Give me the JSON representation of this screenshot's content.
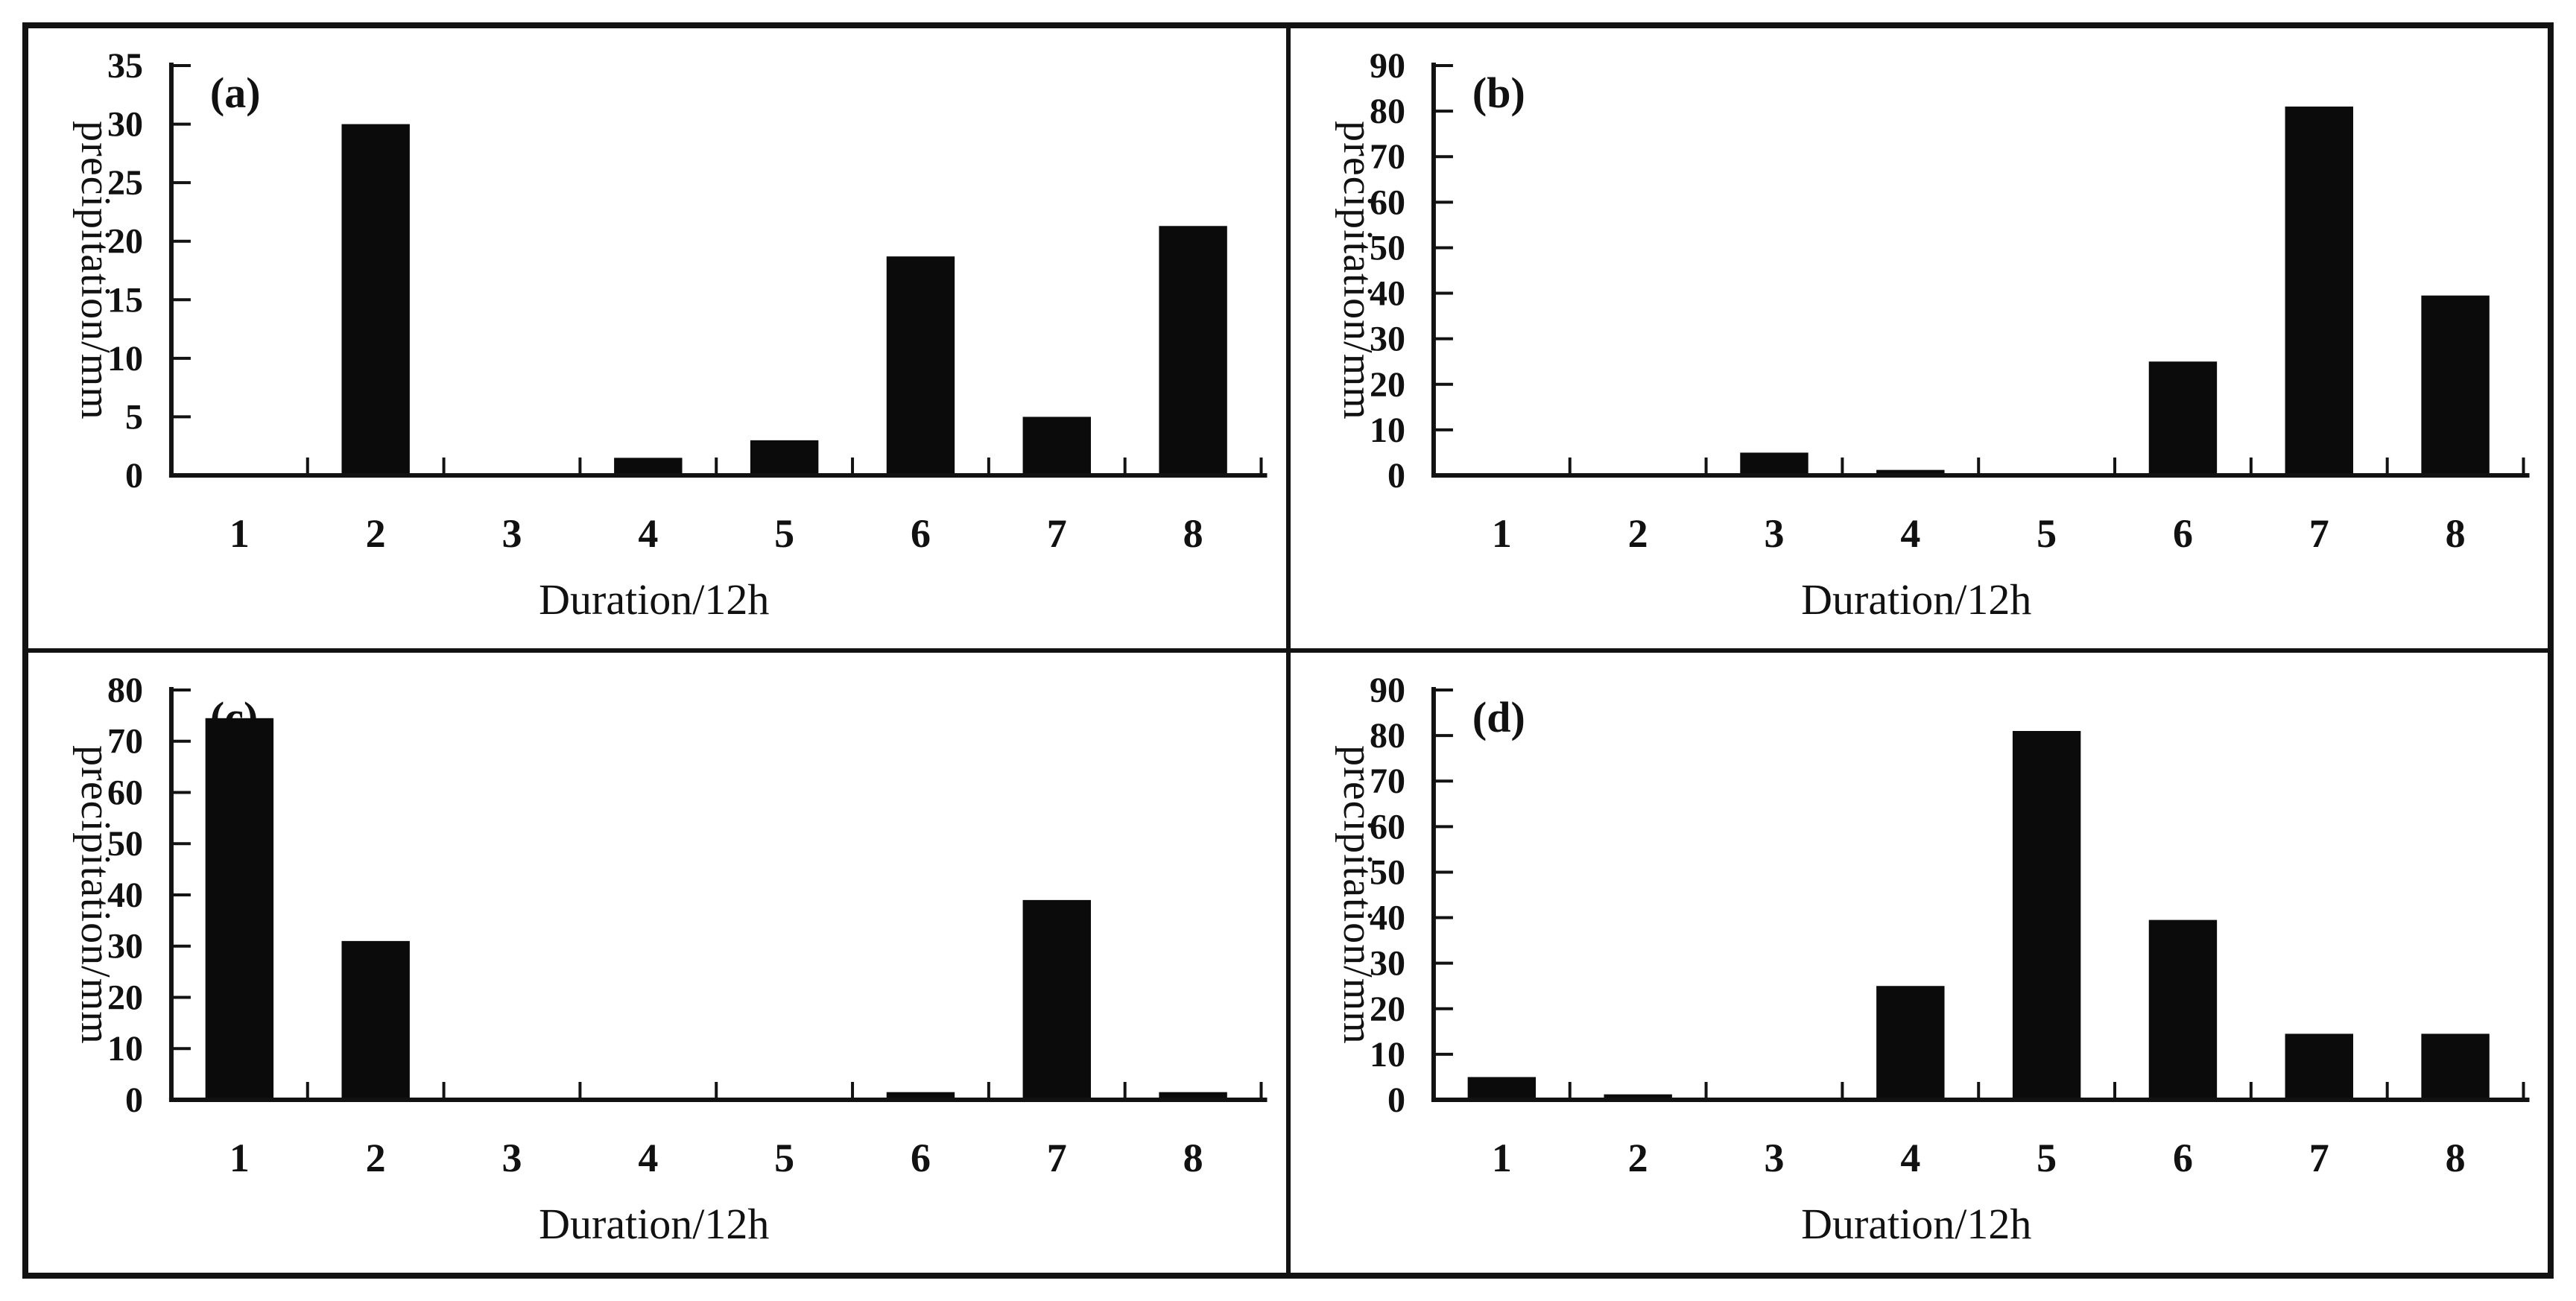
{
  "figure": {
    "background": "#ffffff",
    "border_color": "#121212",
    "bar_color": "#0b0b0b",
    "text_color": "#111111"
  },
  "chart_data": [
    {
      "type": "bar",
      "panel_label": "(a)",
      "categories": [
        "1",
        "2",
        "3",
        "4",
        "5",
        "6",
        "7",
        "8"
      ],
      "values": [
        0,
        30,
        0,
        1.5,
        3,
        18.7,
        5,
        21.3
      ],
      "xlabel": "Duration/12h",
      "ylabel": "precipitation/mm",
      "ylim": [
        0,
        35
      ],
      "yticks": [
        0,
        5,
        10,
        15,
        20,
        25,
        30,
        35
      ],
      "grid": false,
      "legend": false
    },
    {
      "type": "bar",
      "panel_label": "(b)",
      "categories": [
        "1",
        "2",
        "3",
        "4",
        "5",
        "6",
        "7",
        "8"
      ],
      "values": [
        0,
        0,
        5,
        1.2,
        0,
        25,
        81,
        39.5
      ],
      "xlabel": "Duration/12h",
      "ylabel": "precipitation/mm",
      "ylim": [
        0,
        90
      ],
      "yticks": [
        0,
        10,
        20,
        30,
        40,
        50,
        60,
        70,
        80,
        90
      ],
      "grid": false,
      "legend": false
    },
    {
      "type": "bar",
      "panel_label": "(c)",
      "categories": [
        "1",
        "2",
        "3",
        "4",
        "5",
        "6",
        "7",
        "8"
      ],
      "values": [
        74.5,
        31,
        0,
        0,
        0,
        1.5,
        39,
        1.5
      ],
      "xlabel": "Duration/12h",
      "ylabel": "precipitation/mm",
      "ylim": [
        0,
        80
      ],
      "yticks": [
        0,
        10,
        20,
        30,
        40,
        50,
        60,
        70,
        80
      ],
      "grid": false,
      "legend": false
    },
    {
      "type": "bar",
      "panel_label": "(d)",
      "categories": [
        "1",
        "2",
        "3",
        "4",
        "5",
        "6",
        "7",
        "8"
      ],
      "values": [
        5,
        1.2,
        0,
        25,
        81,
        39.5,
        14.5,
        14.5
      ],
      "xlabel": "Duration/12h",
      "ylabel": "precipitation/mm",
      "ylim": [
        0,
        90
      ],
      "yticks": [
        0,
        10,
        20,
        30,
        40,
        50,
        60,
        70,
        80,
        90
      ],
      "grid": false,
      "legend": false
    }
  ]
}
